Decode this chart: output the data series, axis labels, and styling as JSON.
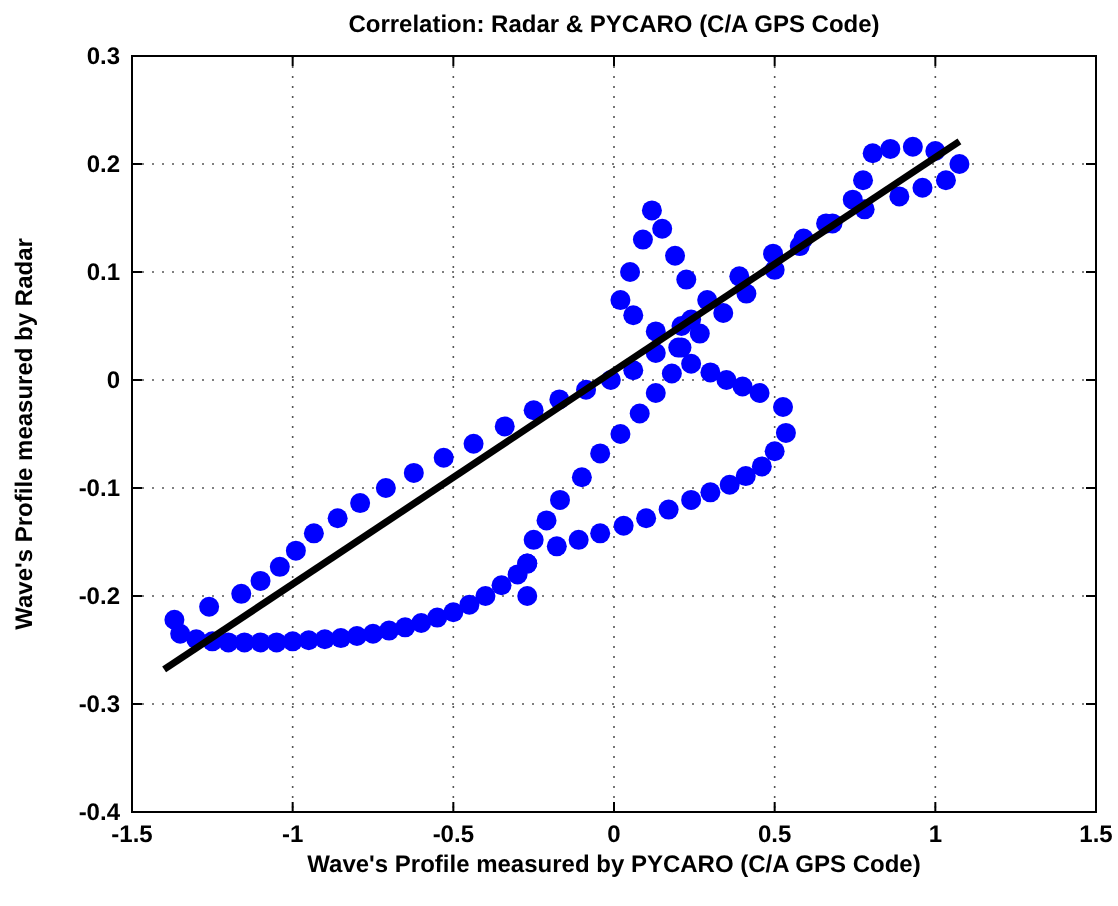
{
  "chart_data": {
    "type": "scatter",
    "title": "Correlation: Radar & PYCARO (C/A GPS Code)",
    "xlabel": "Wave's Profile measured by PYCARO (C/A GPS Code)",
    "ylabel": "Wave's Profile measured by Radar",
    "xlim": [
      -1.5,
      1.5
    ],
    "xticks": [
      -1.5,
      -1,
      -0.5,
      0,
      0.5,
      1,
      1.5
    ],
    "ylim": [
      -0.4,
      0.3
    ],
    "yticks": [
      -0.4,
      -0.3,
      -0.2,
      -0.1,
      0,
      0.1,
      0.2,
      0.3
    ],
    "grid": true,
    "series": [
      {
        "color": "#0000ff",
        "marker": "circle",
        "x": [
          -1.35,
          -1.3,
          -1.25,
          -1.2,
          -1.15,
          -1.1,
          -1.05,
          -1.0,
          -0.95,
          -0.9,
          -0.85,
          -0.8,
          -0.75,
          -0.7,
          -0.65,
          -0.6,
          -0.55,
          -0.5,
          -0.45,
          -0.4,
          -0.35,
          -0.3,
          -0.27,
          -0.178,
          -0.11,
          -0.043,
          0.03,
          0.1,
          0.17,
          0.24,
          0.3,
          0.36,
          0.41,
          0.46,
          0.5,
          0.535,
          0.526,
          0.453,
          0.4,
          0.35,
          0.3,
          0.24,
          0.2,
          0.13,
          0.06,
          0.02,
          0.05,
          0.09,
          0.118,
          0.15,
          0.19,
          0.225,
          0.24,
          0.21,
          0.18,
          0.13,
          0.08,
          0.02,
          -0.043,
          -0.1,
          -0.168,
          -0.21,
          -0.25,
          -0.27,
          -0.27,
          -1.368,
          -1.26,
          -1.16,
          -1.1,
          -1.04,
          -0.99,
          -0.934,
          -0.86,
          -0.79,
          -0.71,
          -0.623,
          -0.53,
          -0.437,
          -0.34,
          -0.25,
          -0.17,
          -0.087,
          -0.01,
          0.06,
          0.13,
          0.21,
          0.29,
          0.39,
          0.495,
          0.59,
          0.68,
          0.78,
          0.888,
          0.96,
          1.033,
          1.075,
          1.0,
          0.93,
          0.86,
          0.805,
          0.775,
          0.743,
          0.66,
          0.578,
          0.5,
          0.412,
          0.34,
          0.267
        ],
        "values": [
          -0.235,
          -0.24,
          -0.242,
          -0.243,
          -0.243,
          -0.243,
          -0.243,
          -0.242,
          -0.241,
          -0.24,
          -0.239,
          -0.237,
          -0.235,
          -0.232,
          -0.229,
          -0.225,
          -0.22,
          -0.215,
          -0.208,
          -0.2,
          -0.19,
          -0.18,
          -0.17,
          -0.154,
          -0.148,
          -0.142,
          -0.135,
          -0.128,
          -0.12,
          -0.111,
          -0.104,
          -0.097,
          -0.089,
          -0.08,
          -0.066,
          -0.049,
          -0.025,
          -0.012,
          -0.006,
          0.0,
          0.007,
          0.015,
          0.03,
          0.045,
          0.06,
          0.074,
          0.1,
          0.13,
          0.157,
          0.14,
          0.115,
          0.093,
          0.056,
          0.03,
          0.006,
          -0.012,
          -0.031,
          -0.05,
          -0.068,
          -0.09,
          -0.111,
          -0.13,
          -0.148,
          -0.17,
          -0.2,
          -0.222,
          -0.21,
          -0.198,
          -0.186,
          -0.173,
          -0.158,
          -0.142,
          -0.128,
          -0.114,
          -0.1,
          -0.086,
          -0.072,
          -0.059,
          -0.043,
          -0.028,
          -0.018,
          -0.009,
          0.0,
          0.009,
          0.025,
          0.05,
          0.074,
          0.096,
          0.117,
          0.131,
          0.145,
          0.158,
          0.17,
          0.178,
          0.185,
          0.2,
          0.212,
          0.216,
          0.214,
          0.21,
          0.185,
          0.167,
          0.145,
          0.124,
          0.102,
          0.08,
          0.062,
          0.043
        ]
      },
      {
        "type": "line",
        "color": "#000000",
        "line_style": "solid",
        "x": [
          -1.4,
          1.075
        ],
        "values": [
          -0.268,
          0.221
        ]
      }
    ]
  }
}
